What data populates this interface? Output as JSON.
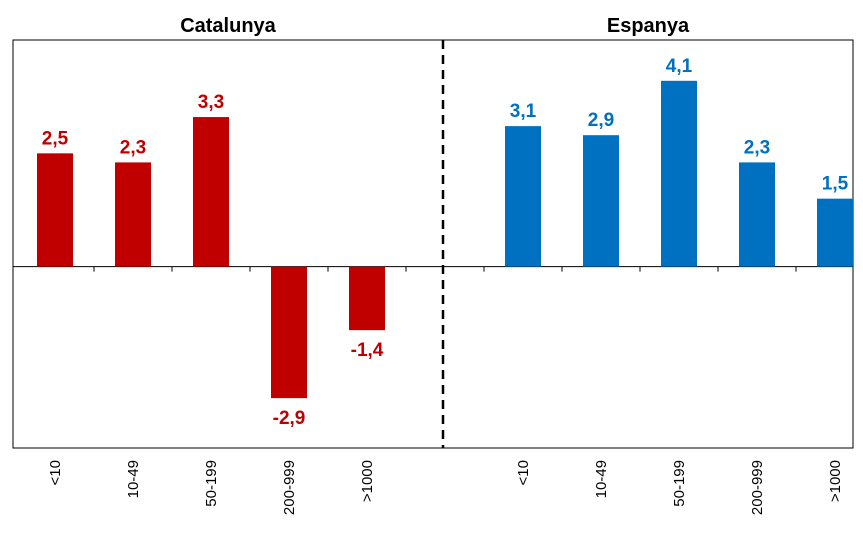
{
  "chart_data": {
    "type": "bar",
    "ylim": [
      -4,
      5
    ],
    "series": [
      {
        "name": "Catalunya",
        "color": "#c00000",
        "categories": [
          "<10",
          "10-49",
          "50-199",
          "200-999",
          ">1000"
        ],
        "values": [
          2.5,
          2.3,
          3.3,
          -2.9,
          -1.4
        ],
        "value_labels": [
          "2,5",
          "2,3",
          "3,3",
          "-2,9",
          "-1,4"
        ]
      },
      {
        "name": "Espanya",
        "color": "#0070c0",
        "categories": [
          "<10",
          "10-49",
          "50-199",
          "200-999",
          ">1000"
        ],
        "values": [
          3.1,
          2.9,
          4.1,
          2.3,
          1.5
        ],
        "value_labels": [
          "3,1",
          "2,9",
          "4,1",
          "2,3",
          "1,5"
        ]
      }
    ]
  }
}
